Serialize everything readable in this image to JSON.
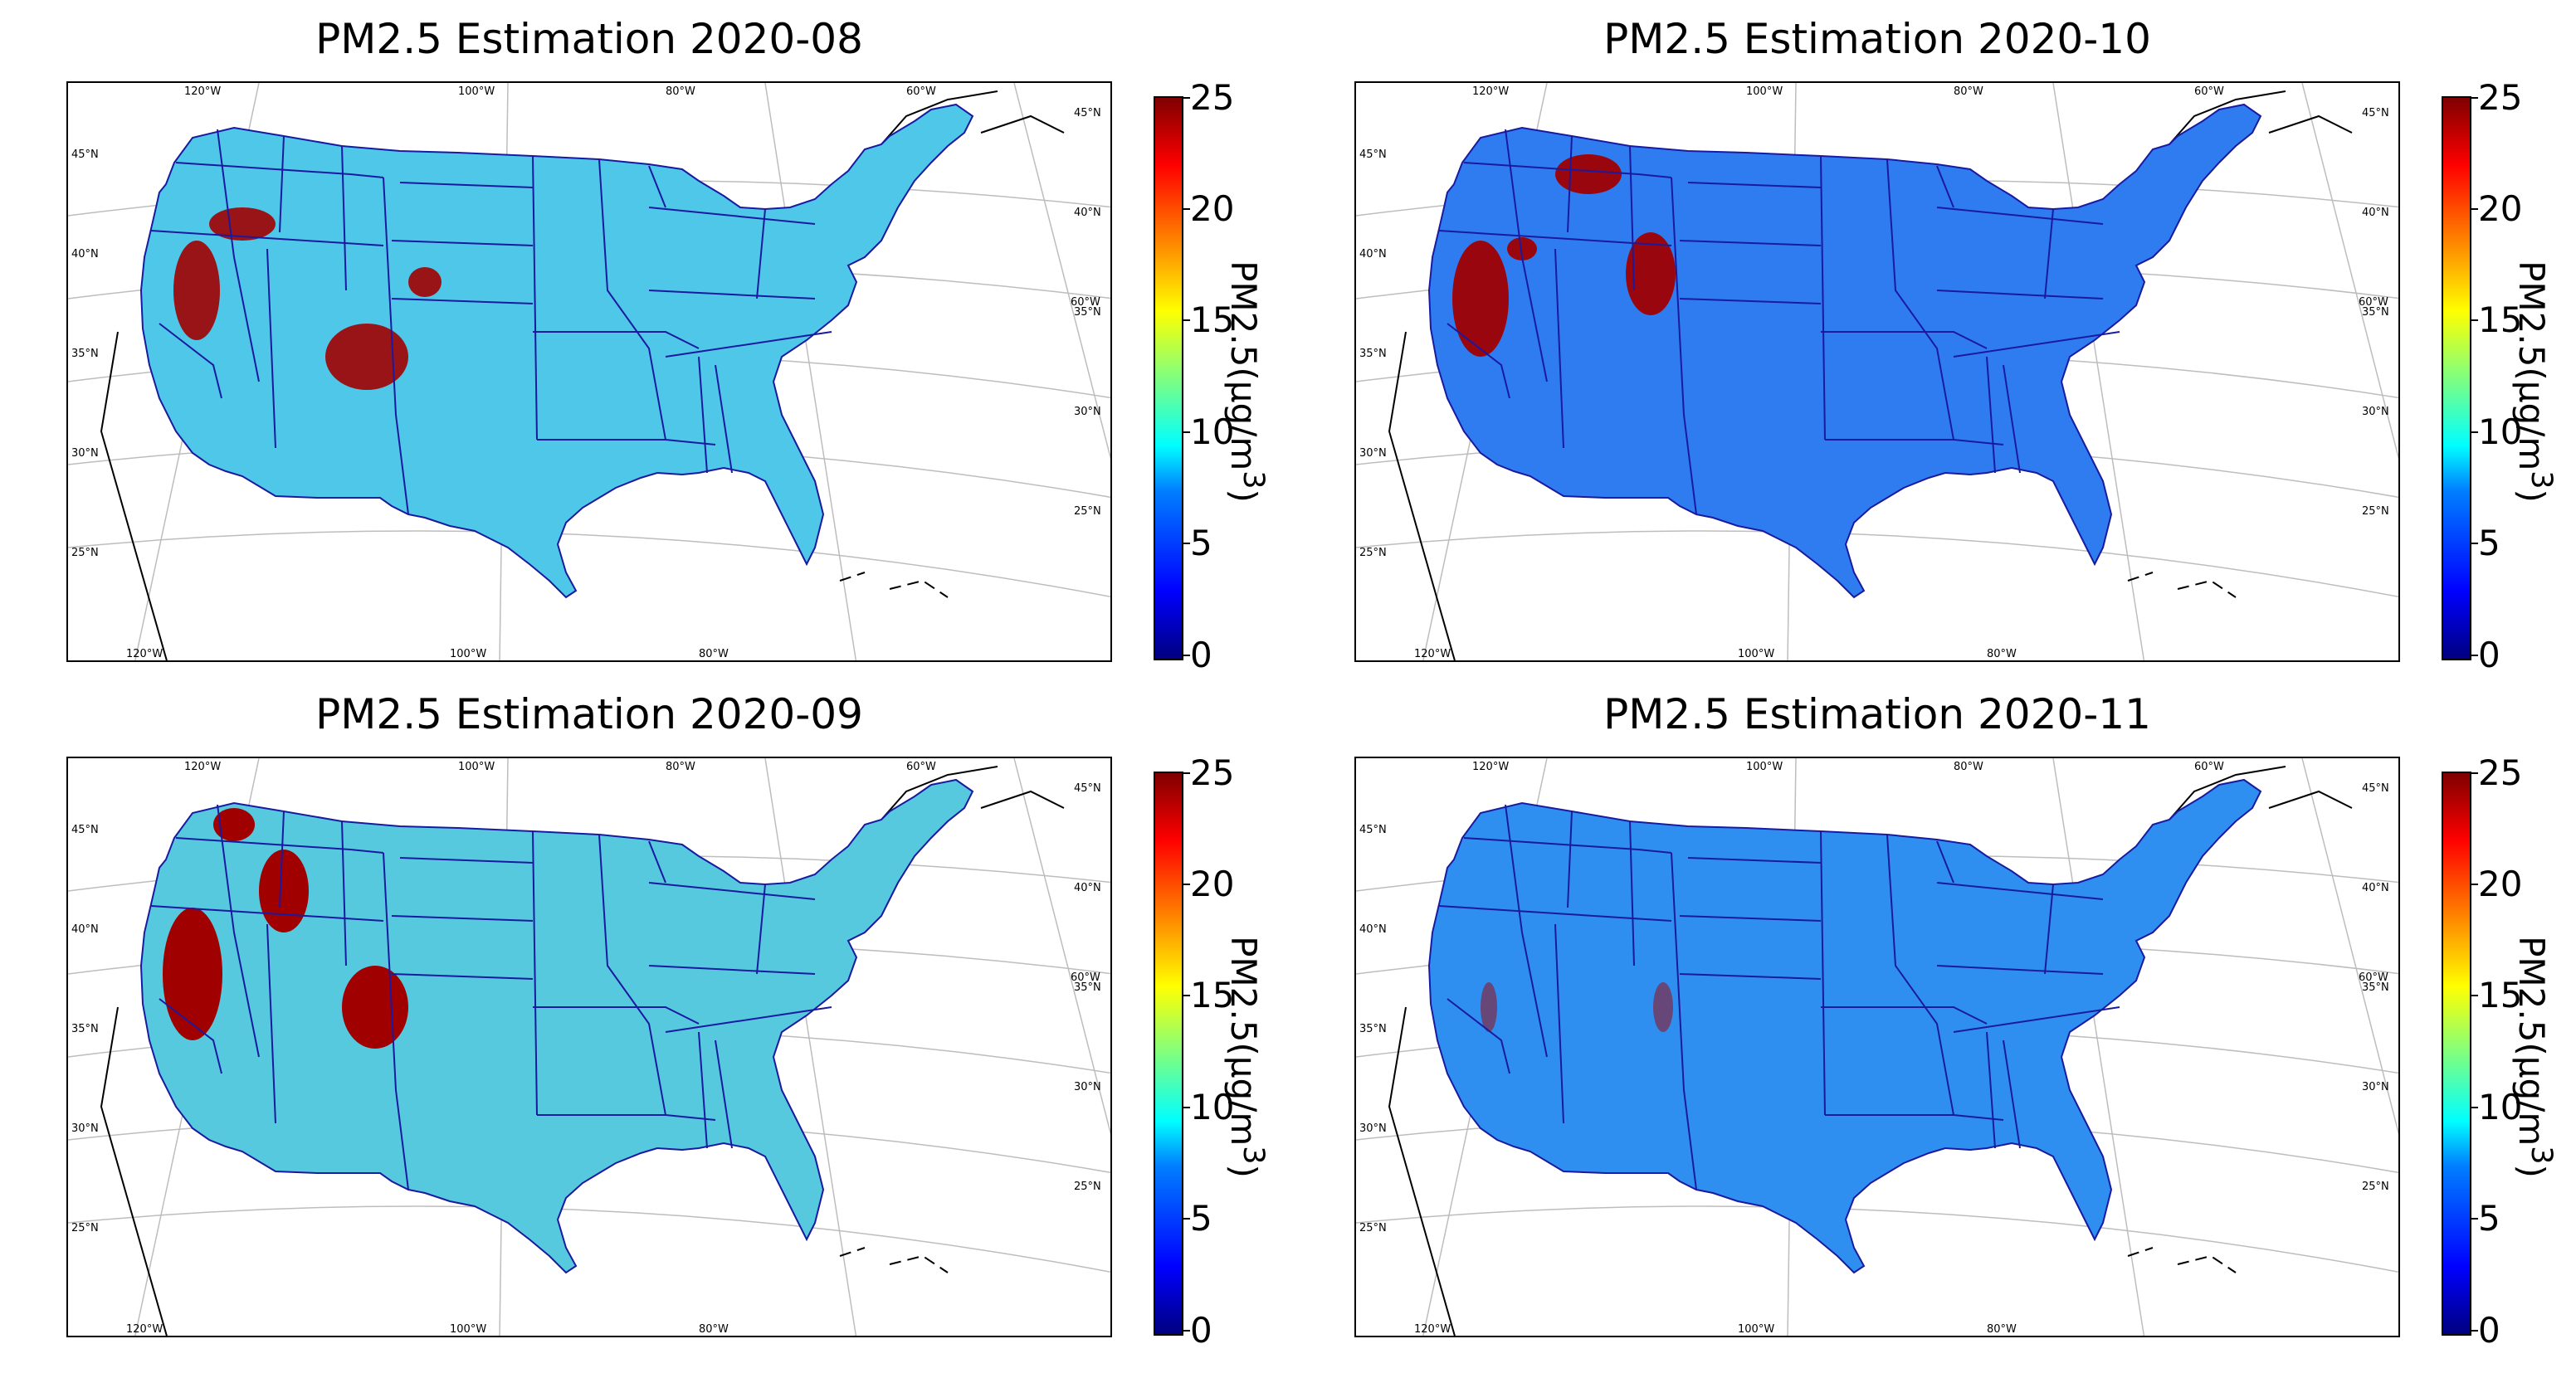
{
  "panels": [
    {
      "title": "PM2.5 Estimation 2020-08",
      "month": "2020-08"
    },
    {
      "title": "PM2.5 Estimation 2020-10",
      "month": "2020-10"
    },
    {
      "title": "PM2.5 Estimation 2020-09",
      "month": "2020-09"
    },
    {
      "title": "PM2.5 Estimation 2020-11",
      "month": "2020-11"
    }
  ],
  "colorbar": {
    "label": "PM2.5(µg/m",
    "label_sup": "3",
    "label_close": ")",
    "ticks": [
      "25",
      "20",
      "15",
      "10",
      "5",
      "0"
    ],
    "range": [
      0,
      25
    ],
    "colormap": "jet"
  },
  "gridlabels": {
    "lon_top": [
      "120°W",
      "100°W",
      "80°W",
      "60°W"
    ],
    "lon_bottom": [
      "120°W",
      "100°W",
      "80°W"
    ],
    "lat_left": [
      "45°N",
      "40°N",
      "35°N",
      "30°N",
      "25°N"
    ],
    "lat_right": [
      "45°N",
      "40°N",
      "35°N",
      "30°N",
      "25°N"
    ],
    "extra_right": "60°W"
  },
  "colors": {
    "background": "#ffffff",
    "land_fill_0": "#4fc7e8",
    "land_fill_1": "#2f7cf0",
    "land_fill_2": "#56c9df",
    "land_fill_3": "#2f8ff0",
    "hotspot": "#a00000",
    "border": "#1a1aa0"
  }
}
